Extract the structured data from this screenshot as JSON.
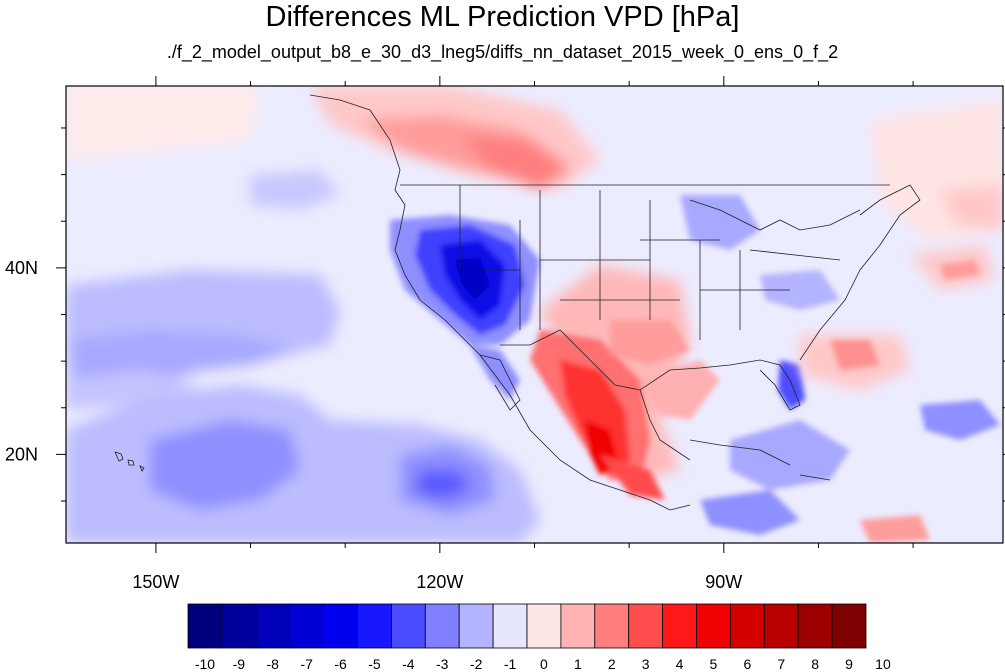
{
  "title": "Differences ML Prediction VPD [hPa]",
  "subtitle": "./f_2_model_output_b8_e_30_d3_lneg5/diffs_nn_dataset_2015_week_0_ens_0_f_2",
  "map": {
    "lon_range": [
      -159.5,
      -60.5
    ],
    "lat_range": [
      10.5,
      59.5
    ],
    "lon_ticks": [
      {
        "value": -150,
        "label": "150W"
      },
      {
        "value": -120,
        "label": "120W"
      },
      {
        "value": -90,
        "label": "90W"
      }
    ],
    "lat_ticks": [
      {
        "value": 20,
        "label": "20N"
      },
      {
        "value": 40,
        "label": "40N"
      }
    ]
  },
  "colorbar": {
    "labels": [
      "-10",
      "-9",
      "-8",
      "-7",
      "-6",
      "-5",
      "-4",
      "-3",
      "-2",
      "-1",
      "0",
      "1",
      "2",
      "3",
      "4",
      "5",
      "6",
      "7",
      "8",
      "9",
      "10"
    ],
    "colors": [
      "#00007f",
      "#00009c",
      "#0000b8",
      "#0000d4",
      "#0000f0",
      "#1818ff",
      "#4c4cff",
      "#7f7fff",
      "#b3b3ff",
      "#e6e6ff",
      "#ffe6e6",
      "#ffb3b3",
      "#ff7f7f",
      "#ff4c4c",
      "#ff1818",
      "#f00000",
      "#d40000",
      "#b80000",
      "#9c0000",
      "#7f0000"
    ]
  }
}
